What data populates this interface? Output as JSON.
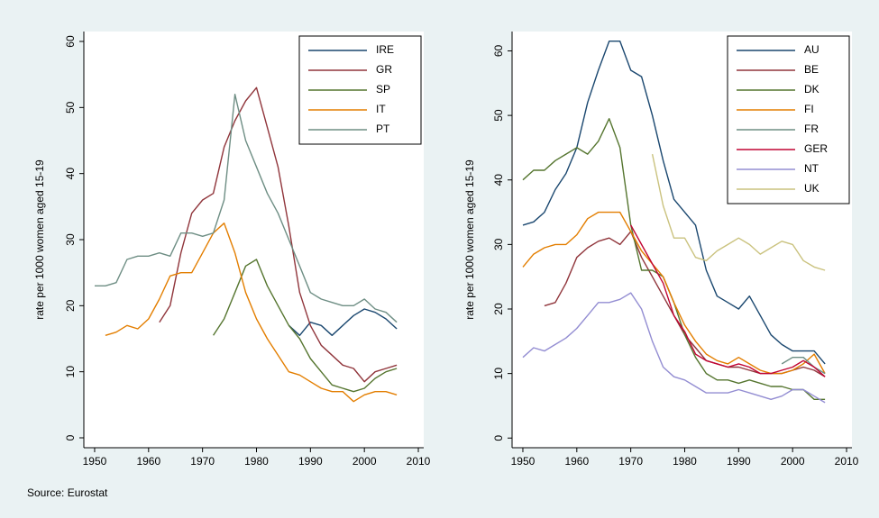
{
  "chart_data": [
    {
      "type": "line",
      "ylabel": "rate per 1000 women aged 15-19",
      "x": [
        1950,
        1952,
        1954,
        1956,
        1958,
        1960,
        1962,
        1964,
        1966,
        1968,
        1970,
        1972,
        1974,
        1976,
        1978,
        1980,
        1982,
        1984,
        1986,
        1988,
        1990,
        1992,
        1994,
        1996,
        1998,
        2000,
        2002,
        2004,
        2006
      ],
      "xlim": [
        1948,
        2011
      ],
      "xticks": [
        1950,
        1960,
        1970,
        1980,
        1990,
        2000,
        2010
      ],
      "ylim": [
        -1.5,
        61.5
      ],
      "yticks": [
        0,
        10,
        20,
        30,
        40,
        50,
        60
      ],
      "legend": "top-right",
      "series": [
        {
          "name": "IRE",
          "color": "#1a476f",
          "values": [
            null,
            null,
            null,
            null,
            null,
            null,
            null,
            null,
            null,
            null,
            null,
            null,
            null,
            null,
            null,
            null,
            null,
            null,
            17,
            15.5,
            17.5,
            17,
            15.5,
            17,
            18.5,
            19.5,
            19,
            18,
            16.5
          ]
        },
        {
          "name": "GR",
          "color": "#90353b",
          "values": [
            null,
            null,
            null,
            null,
            null,
            null,
            17.5,
            20,
            28,
            34,
            36,
            37,
            44,
            48,
            51,
            53,
            47,
            41,
            32,
            22,
            17,
            14,
            12.5,
            11,
            10.5,
            8.5,
            10,
            10.5,
            11
          ]
        },
        {
          "name": "SP",
          "color": "#55752f",
          "values": [
            null,
            null,
            null,
            null,
            null,
            null,
            null,
            null,
            null,
            null,
            null,
            15.5,
            18,
            22,
            26,
            27,
            23,
            20,
            17,
            15,
            12,
            10,
            8,
            7.5,
            7,
            7.5,
            9,
            10,
            10.5
          ]
        },
        {
          "name": "IT",
          "color": "#e37e00",
          "values": [
            null,
            15.5,
            16,
            17,
            16.5,
            18,
            21,
            24.5,
            25,
            25,
            28,
            31,
            32.5,
            28,
            22,
            18,
            15,
            12.5,
            10,
            9.5,
            8.5,
            7.5,
            7,
            7,
            5.5,
            6.5,
            7,
            7,
            6.5
          ]
        },
        {
          "name": "PT",
          "color": "#6e8e84",
          "values": [
            23,
            23,
            23.5,
            27,
            27.5,
            27.5,
            28,
            27.5,
            31,
            31,
            30.5,
            31,
            36,
            52,
            45,
            41,
            37,
            34,
            30,
            26,
            22,
            21,
            20.5,
            20,
            20,
            21,
            19.5,
            19,
            17.5
          ]
        }
      ]
    },
    {
      "type": "line",
      "ylabel": "rate per 1000 women aged 15-19",
      "x": [
        1950,
        1952,
        1954,
        1956,
        1958,
        1960,
        1962,
        1964,
        1966,
        1968,
        1970,
        1972,
        1974,
        1976,
        1978,
        1980,
        1982,
        1984,
        1986,
        1988,
        1990,
        1992,
        1994,
        1996,
        1998,
        2000,
        2002,
        2004,
        2006
      ],
      "xlim": [
        1948,
        2011
      ],
      "xticks": [
        1950,
        1960,
        1970,
        1980,
        1990,
        2000,
        2010
      ],
      "ylim": [
        -1.5,
        63
      ],
      "yticks": [
        0,
        10,
        20,
        30,
        40,
        50,
        60
      ],
      "legend": "top-right",
      "series": [
        {
          "name": "AU",
          "color": "#1a476f",
          "values": [
            33,
            33.5,
            35,
            38.5,
            41,
            45,
            52,
            57,
            61.5,
            61.5,
            57,
            56,
            50,
            43,
            37,
            35,
            33,
            26,
            22,
            21,
            20,
            22,
            19,
            16,
            14.5,
            13.5,
            13.5,
            13.5,
            11.5
          ]
        },
        {
          "name": "BE",
          "color": "#90353b",
          "values": [
            null,
            null,
            20.5,
            21,
            24,
            28,
            29.5,
            30.5,
            31,
            30,
            32,
            28,
            25,
            22,
            19,
            16,
            14,
            12,
            11.5,
            11,
            11,
            10.5,
            10,
            10,
            10,
            10.5,
            11,
            10.5,
            9.5
          ]
        },
        {
          "name": "DK",
          "color": "#55752f",
          "values": [
            40,
            41.5,
            41.5,
            43,
            44,
            45,
            44,
            46,
            49.5,
            45,
            33,
            26,
            26,
            25,
            21,
            16,
            12.5,
            10,
            9,
            9,
            8.5,
            9,
            8.5,
            8,
            8,
            7.5,
            7.5,
            6,
            6
          ]
        },
        {
          "name": "FI",
          "color": "#e37e00",
          "values": [
            26.5,
            28.5,
            29.5,
            30,
            30,
            31.5,
            34,
            35,
            35,
            35,
            32,
            29,
            27,
            25,
            21,
            17.5,
            15,
            13,
            12,
            11.5,
            12.5,
            11.5,
            10.5,
            10,
            10,
            10.5,
            11.5,
            13,
            10
          ]
        },
        {
          "name": "FR",
          "color": "#6e8e84",
          "values": [
            null,
            null,
            null,
            null,
            null,
            null,
            null,
            null,
            null,
            null,
            null,
            null,
            null,
            null,
            null,
            null,
            null,
            null,
            null,
            null,
            null,
            null,
            null,
            null,
            11.5,
            12.5,
            12.5,
            11,
            10
          ]
        },
        {
          "name": "GER",
          "color": "#c10534",
          "values": [
            null,
            null,
            null,
            null,
            null,
            null,
            null,
            null,
            null,
            null,
            33,
            30,
            27,
            24,
            19,
            16.5,
            13,
            12,
            11.5,
            11,
            11.5,
            11,
            10,
            10,
            10.5,
            11,
            12,
            11,
            9.5
          ]
        },
        {
          "name": "NT",
          "color": "#938dd2",
          "values": [
            12.5,
            14,
            13.5,
            14.5,
            15.5,
            17,
            19,
            21,
            21,
            21.5,
            22.5,
            20,
            15,
            11,
            9.5,
            9,
            8,
            7,
            7,
            7,
            7.5,
            7,
            6.5,
            6,
            6.5,
            7.5,
            7.5,
            6.5,
            5.5
          ]
        },
        {
          "name": "UK",
          "color": "#cac27e",
          "values": [
            null,
            null,
            null,
            null,
            null,
            null,
            null,
            null,
            null,
            null,
            null,
            null,
            44,
            36,
            31,
            31,
            28,
            27.5,
            29,
            30,
            31,
            30,
            28.5,
            29.5,
            30.5,
            30,
            27.5,
            26.5,
            26
          ]
        }
      ]
    }
  ],
  "source": "Source: Eurostat"
}
